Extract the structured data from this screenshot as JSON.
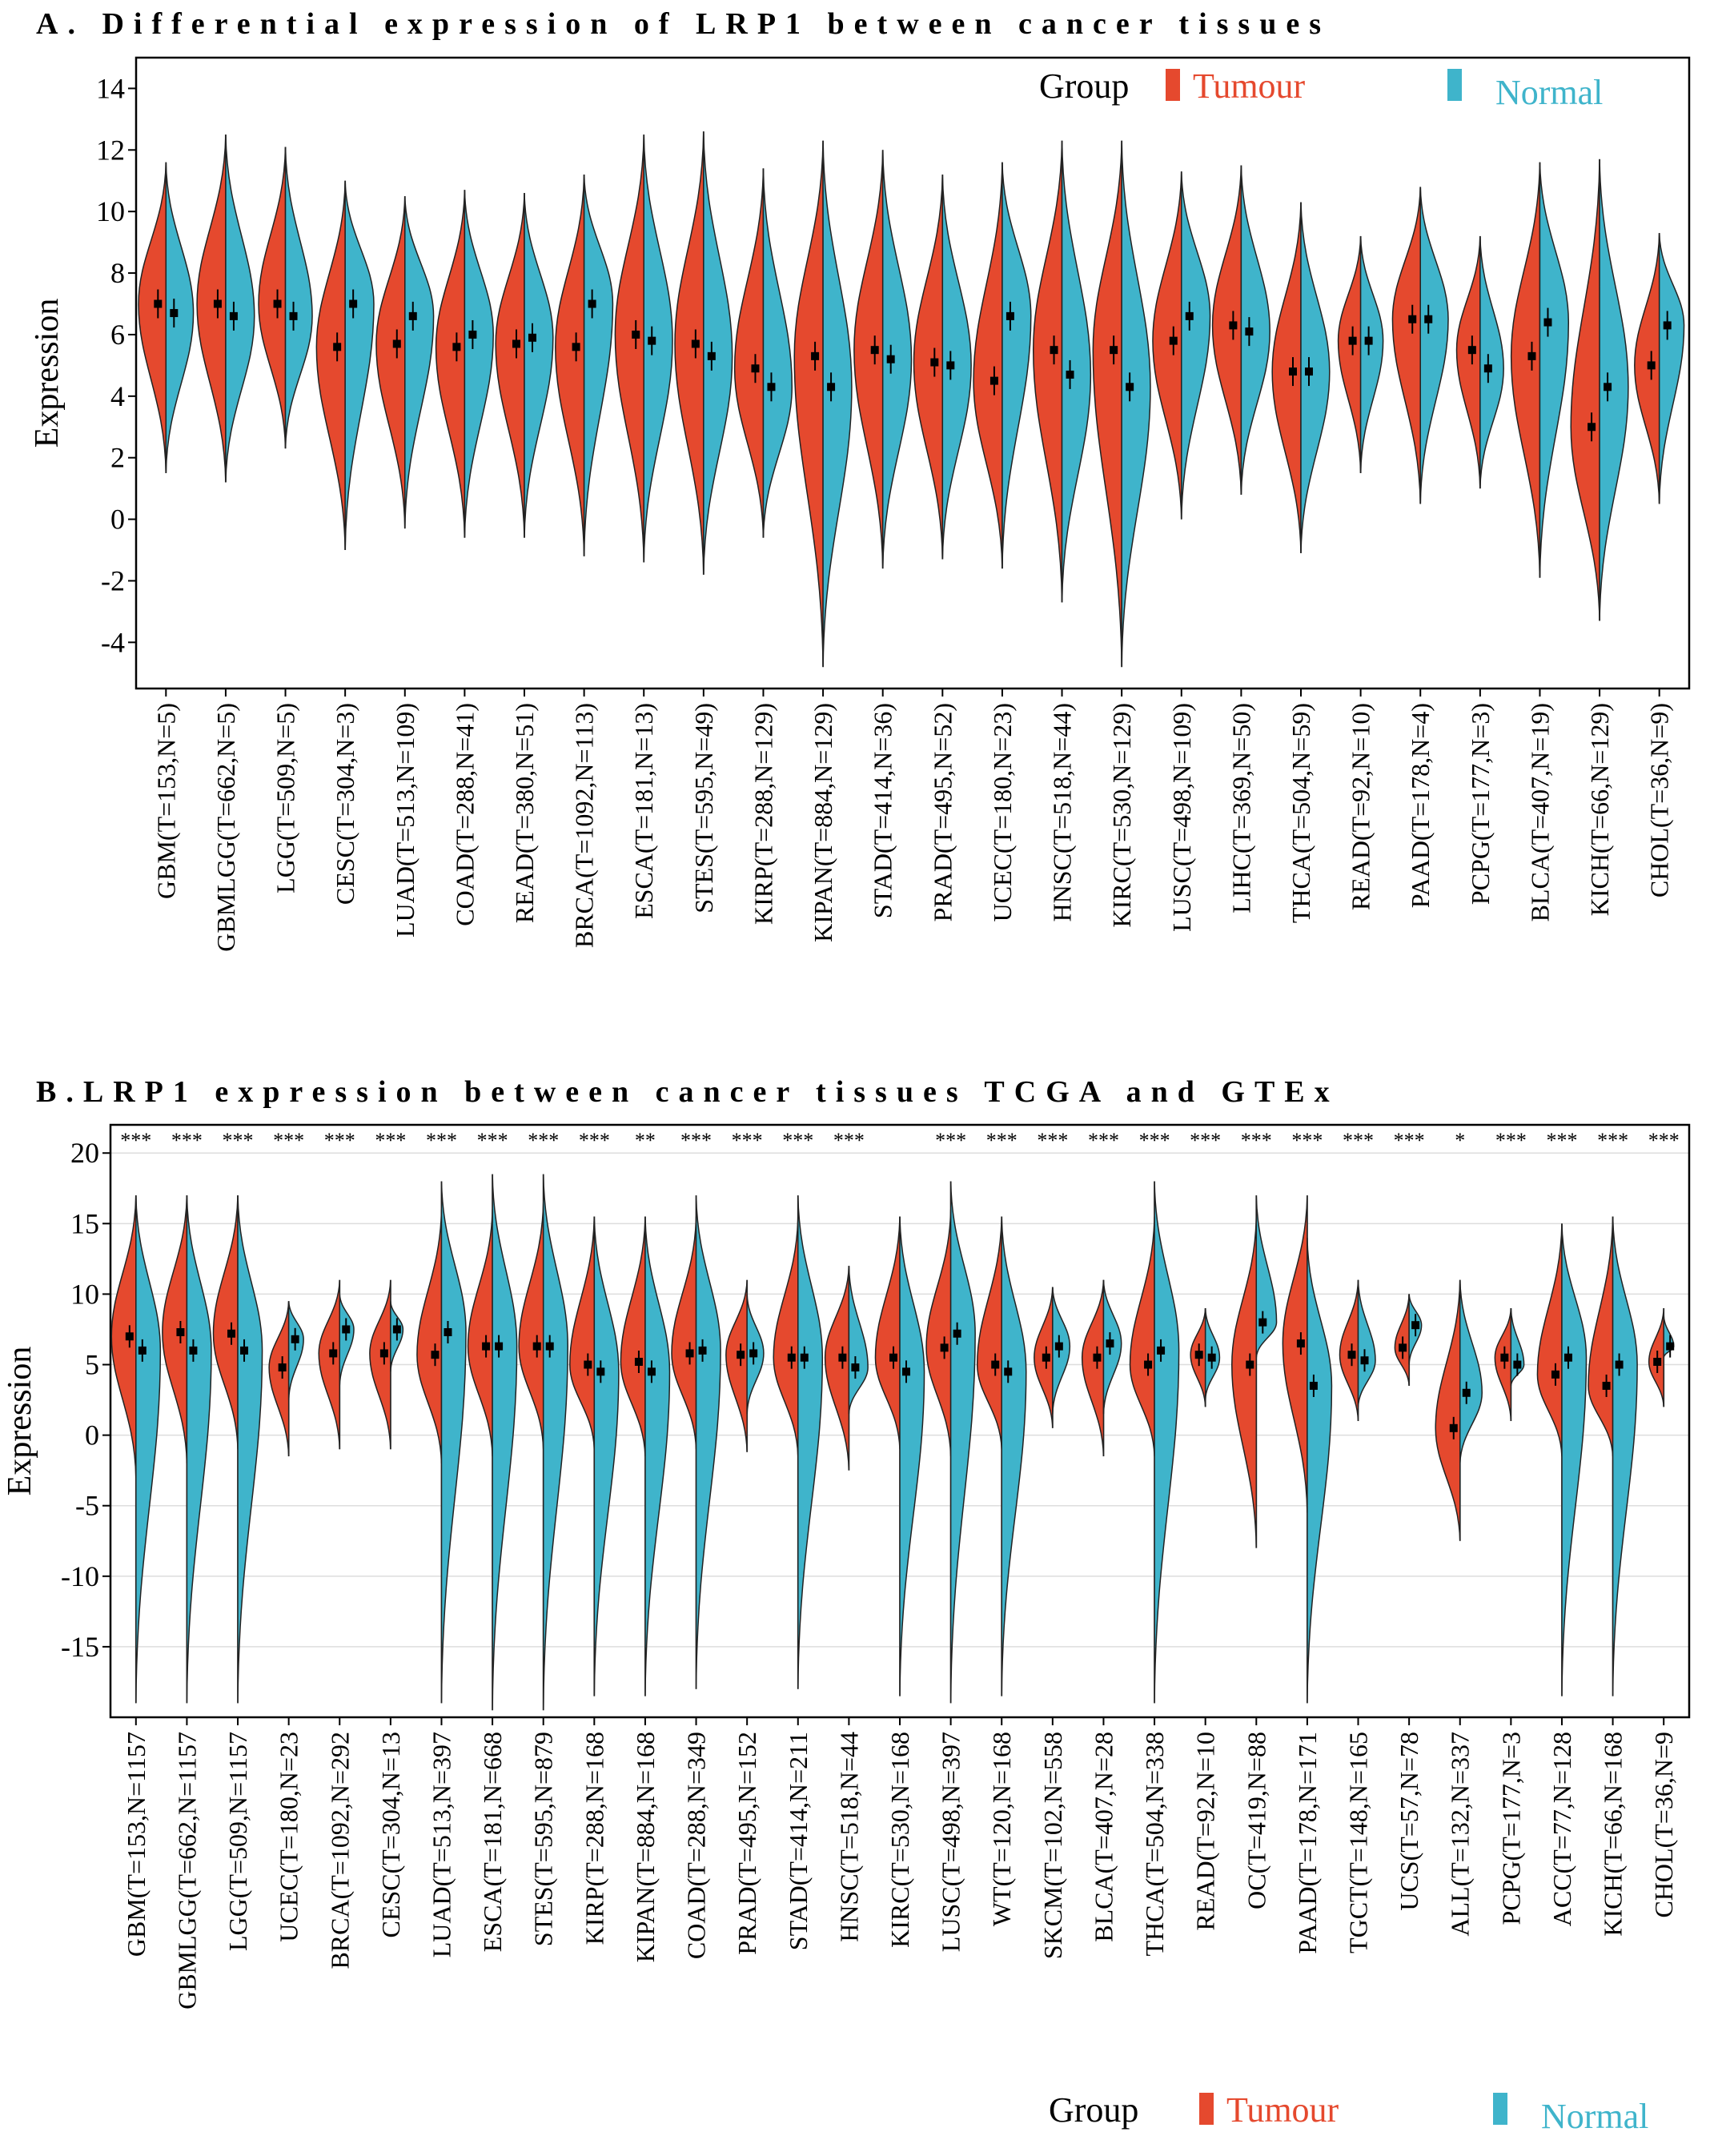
{
  "colors": {
    "tumour": "#E5492E",
    "normal": "#3FB4CB",
    "grid": "#DDDDDD",
    "whisker": "#808080"
  },
  "chart_data": [
    {
      "type": "violin",
      "panel": "A",
      "title": "A. Differential expression of LRP1 between cancer tissues",
      "ylabel": "Expression",
      "xlabel": "",
      "ylim": [
        -5.5,
        15
      ],
      "yticks": [
        -4,
        -2,
        0,
        2,
        4,
        6,
        8,
        10,
        12,
        14
      ],
      "grid": false,
      "legend": {
        "title": "Group",
        "entries": [
          "Tumour",
          "Normal"
        ],
        "position": "top-right"
      },
      "categories": [
        "GBM(T=153,N=5)",
        "GBMLGG(T=662,N=5)",
        "LGG(T=509,N=5)",
        "CESC(T=304,N=3)",
        "LUAD(T=513,N=109)",
        "COAD(T=288,N=41)",
        "READ(T=380,N=51)",
        "BRCA(T=1092,N=113)",
        "ESCA(T=181,N=13)",
        "STES(T=595,N=49)",
        "KIRP(T=288,N=129)",
        "KIPAN(T=884,N=129)",
        "STAD(T=414,N=36)",
        "PRAD(T=495,N=52)",
        "UCEC(T=180,N=23)",
        "HNSC(T=518,N=44)",
        "KIRC(T=530,N=129)",
        "LUSC(T=498,N=109)",
        "LIHC(T=369,N=50)",
        "THCA(T=504,N=59)",
        "READ(T=92,N=10)",
        "PAAD(T=178,N=4)",
        "PCPG(T=177,N=3)",
        "BLCA(T=407,N=19)",
        "KICH(T=66,N=129)",
        "CHOL(T=36,N=9)"
      ],
      "series": [
        {
          "name": "Tumour",
          "median": [
            7.0,
            7.0,
            7.0,
            5.6,
            5.7,
            5.6,
            5.7,
            5.6,
            6.0,
            5.7,
            4.9,
            5.3,
            5.5,
            5.1,
            4.5,
            5.5,
            5.5,
            5.8,
            6.3,
            4.8,
            5.8,
            6.5,
            5.5,
            5.3,
            3.0,
            5.0
          ],
          "min": [
            1.5,
            1.2,
            2.3,
            -1.0,
            -0.3,
            -0.6,
            -0.6,
            -1.2,
            -1.4,
            -1.8,
            -0.6,
            -4.8,
            -1.6,
            -1.3,
            -1.6,
            -2.7,
            -4.8,
            0.0,
            0.8,
            -1.1,
            1.5,
            0.5,
            1.0,
            -1.9,
            -3.3,
            0.5
          ],
          "max": [
            11.6,
            12.5,
            12.1,
            11.0,
            10.5,
            10.7,
            10.6,
            11.2,
            12.5,
            12.6,
            11.4,
            12.3,
            12.0,
            11.2,
            11.6,
            12.3,
            12.3,
            11.3,
            11.5,
            10.3,
            9.2,
            10.8,
            9.2,
            11.6,
            11.7,
            9.3
          ]
        },
        {
          "name": "Normal",
          "median": [
            6.7,
            6.6,
            6.6,
            7.0,
            6.6,
            6.0,
            5.9,
            7.0,
            5.8,
            5.3,
            4.3,
            4.3,
            5.2,
            5.0,
            6.6,
            4.7,
            4.3,
            6.6,
            6.1,
            4.8,
            5.8,
            6.5,
            4.9,
            6.4,
            4.3,
            6.3
          ]
        }
      ]
    },
    {
      "type": "violin",
      "panel": "B",
      "title": "B.LRP1 expression between cancer tissues TCGA and GTEx",
      "ylabel": "Expression",
      "xlabel": "",
      "ylim": [
        -20,
        22
      ],
      "yticks": [
        -15,
        -10,
        -5,
        0,
        5,
        10,
        15,
        20
      ],
      "grid": true,
      "legend": {
        "title": "Group",
        "entries": [
          "Tumour",
          "Normal"
        ],
        "position": "bottom"
      },
      "categories": [
        "GBM(T=153,N=1157",
        "GBMLGG(T=662,N=1157",
        "LGG(T=509,N=1157",
        "UCEC(T=180,N=23",
        "BRCA(T=1092,N=292",
        "CESC(T=304,N=13",
        "LUAD(T=513,N=397",
        "ESCA(T=181,N=668",
        "STES(T=595,N=879",
        "KIRP(T=288,N=168",
        "KIPAN(T=884,N=168",
        "COAD(T=288,N=349",
        "PRAD(T=495,N=152",
        "STAD(T=414,N=211",
        "HNSC(T=518,N=44",
        "KIRC(T=530,N=168",
        "LUSC(T=498,N=397",
        "WT(T=120,N=168",
        "SKCM(T=102,N=558",
        "BLCA(T=407,N=28",
        "THCA(T=504,N=338",
        "READ(T=92,N=10",
        "OC(T=419,N=88",
        "PAAD(T=178,N=171",
        "TGCT(T=148,N=165",
        "UCS(T=57,N=78",
        "ALL(T=132,N=337",
        "PCPG(T=177,N=3",
        "ACC(T=77,N=128",
        "KICH(T=66,N=168",
        "CHOL(T=36,N=9"
      ],
      "significance": [
        "***",
        "***",
        "***",
        "***",
        "***",
        "***",
        "***",
        "***",
        "***",
        "***",
        "**",
        "***",
        "***",
        "***",
        "***",
        "",
        "***",
        "***",
        "***",
        "***",
        "***",
        "***",
        "***",
        "***",
        "***",
        "***",
        "*",
        "***",
        "***",
        "***",
        "***"
      ],
      "series": [
        {
          "name": "Tumour",
          "median": [
            7.0,
            7.3,
            7.2,
            4.8,
            5.8,
            5.8,
            5.7,
            6.3,
            6.3,
            5.0,
            5.2,
            5.8,
            5.7,
            5.5,
            5.5,
            5.5,
            6.2,
            5.0,
            5.5,
            5.5,
            5.0,
            5.7,
            5.0,
            6.5,
            5.7,
            6.2,
            0.5,
            5.5,
            4.3,
            3.5,
            5.2
          ],
          "min": [
            -3.0,
            -2.0,
            -1.0,
            -1.5,
            -1.0,
            -1.0,
            -2.0,
            -1.5,
            -1.0,
            -1.0,
            -1.5,
            -1.0,
            -1.2,
            -1.5,
            -2.5,
            -1.0,
            -1.5,
            -1.0,
            0.5,
            -1.5,
            -1.5,
            2.0,
            -8.0,
            -5.5,
            1.0,
            3.5,
            -7.5,
            1.0,
            -1.5,
            -1.5,
            2.0
          ],
          "max": [
            17.0,
            17.0,
            17.0,
            9.5,
            11.0,
            11.0,
            16.0,
            16.0,
            16.5,
            15.5,
            15.5,
            15.5,
            11.0,
            15.5,
            12.0,
            15.5,
            16.0,
            15.5,
            10.5,
            11.0,
            15.5,
            9.0,
            15.5,
            17.0,
            11.0,
            10.0,
            11.0,
            9.0,
            15.0,
            15.5,
            9.0
          ]
        },
        {
          "name": "Normal",
          "median": [
            6.0,
            6.0,
            6.0,
            6.8,
            7.5,
            7.5,
            7.3,
            6.3,
            6.3,
            4.5,
            4.5,
            6.0,
            5.8,
            5.5,
            4.8,
            4.5,
            7.2,
            4.5,
            6.3,
            6.5,
            6.0,
            5.5,
            8.0,
            3.5,
            5.3,
            7.8,
            3.0,
            5.0,
            5.5,
            5.0,
            6.3
          ],
          "min": [
            -19.0,
            -19.0,
            -19.0,
            2.5,
            3.5,
            4.5,
            -19.0,
            -19.5,
            -19.5,
            -18.5,
            -18.5,
            -18.0,
            1.5,
            -18.0,
            1.5,
            -18.5,
            -19.0,
            -18.5,
            1.5,
            1.5,
            -19.0,
            2.5,
            5.5,
            -19.0,
            2.0,
            5.0,
            -2.0,
            3.5,
            -18.5,
            -18.5,
            5.5
          ],
          "max": [
            17.0,
            17.0,
            17.0,
            9.5,
            10.0,
            9.5,
            18.0,
            18.5,
            18.5,
            15.5,
            15.5,
            17.0,
            10.0,
            17.0,
            12.0,
            15.5,
            18.0,
            15.5,
            10.5,
            11.0,
            18.0,
            9.0,
            17.0,
            14.0,
            11.0,
            10.0,
            11.0,
            9.0,
            15.0,
            15.5,
            8.5
          ]
        }
      ]
    }
  ]
}
